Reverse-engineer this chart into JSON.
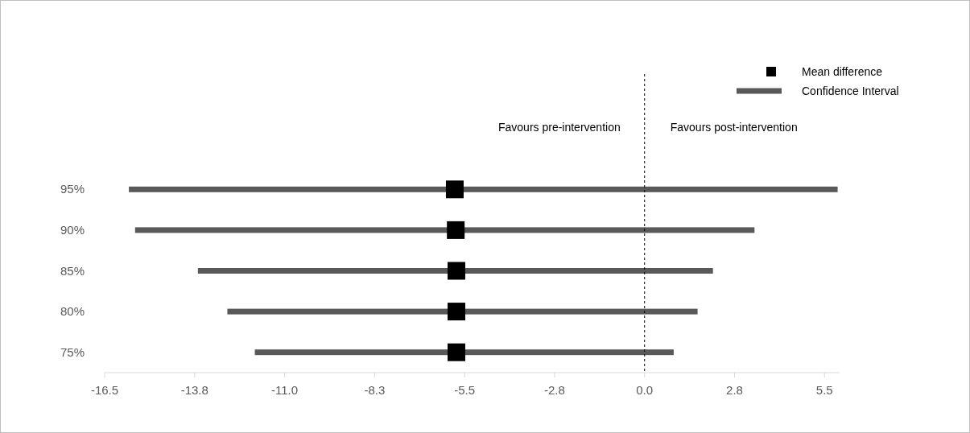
{
  "chart_data": {
    "type": "bar",
    "orientation": "horizontal",
    "categories": [
      "95%",
      "90%",
      "85%",
      "80%",
      "75%"
    ],
    "series": [
      {
        "name": "Mean difference",
        "type": "scatter",
        "color": "#000000",
        "marker": "square",
        "values": [
          -5.8,
          -5.77,
          -5.75,
          -5.75,
          -5.75
        ]
      },
      {
        "name": "Confidence Interval",
        "color": "#595959",
        "base": [
          -15.76,
          -15.57,
          -13.65,
          -12.75,
          -11.91
        ],
        "values": [
          21.66,
          18.93,
          15.74,
          14.37,
          12.8
        ]
      }
    ],
    "xlim": [
      -16.5,
      5.96
    ],
    "xticks": [
      -16.5,
      {
        "value": -13.75,
        "label": "-13.8"
      },
      {
        "value": -11,
        "label": "-11.0"
      },
      {
        "value": -8.25,
        "label": "-8.3"
      },
      -5.5,
      {
        "value": -2.75,
        "label": "-2.8"
      },
      {
        "value": 0,
        "label": "0.0"
      },
      {
        "value": 2.75,
        "label": "2.8"
      },
      5.5
    ],
    "ref_lines": [
      {
        "axis": "x",
        "value": 0,
        "line_style": "dashed",
        "color": "#000000"
      }
    ],
    "annotations": [
      "Favours pre-intervention",
      "Favours post-intervention"
    ],
    "legend": "top right",
    "grid": false
  }
}
